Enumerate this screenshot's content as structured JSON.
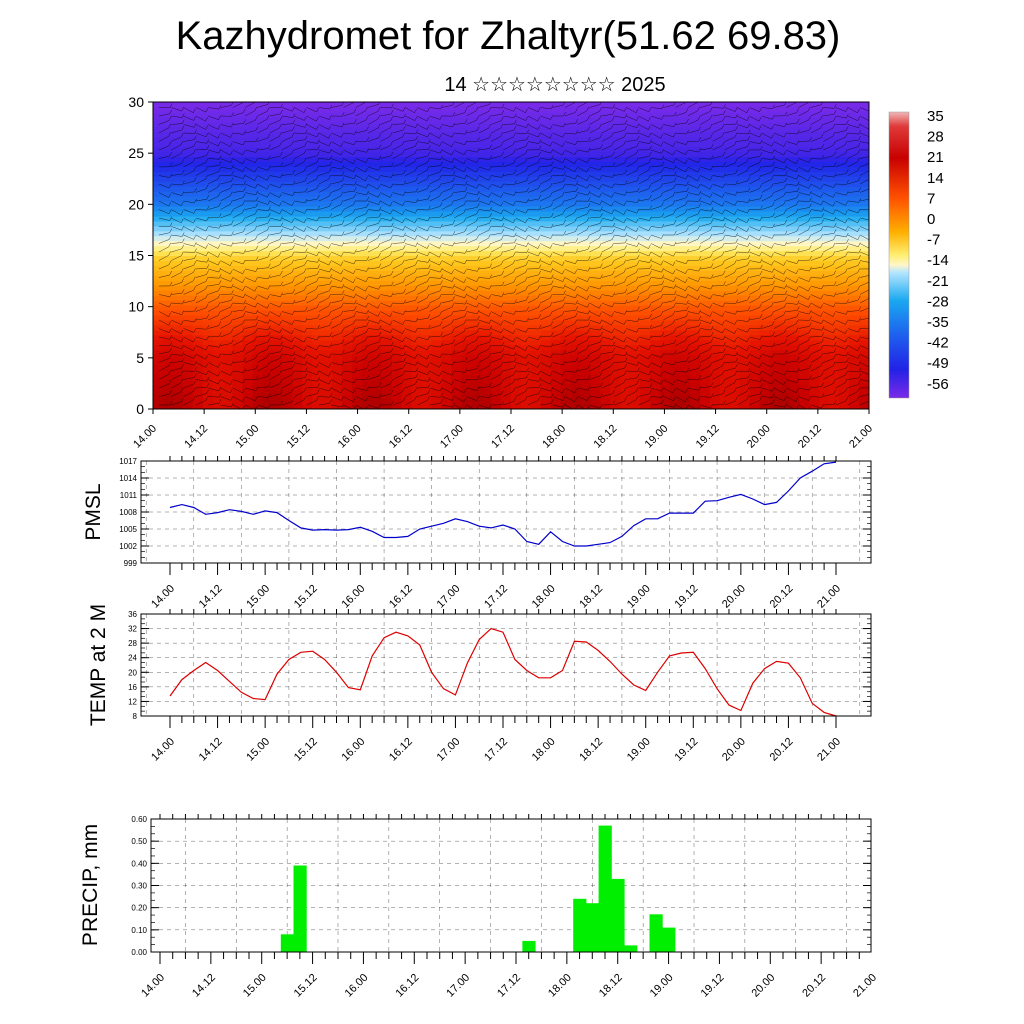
{
  "title": "Kazhydromet for Zhaltyr(51.62 69.83)",
  "subtitle": "14 ☆☆☆☆☆☆☆☆ 2025",
  "time_ticks": [
    "14.00",
    "14.12",
    "15.00",
    "15.12",
    "16.00",
    "16.12",
    "17.00",
    "17.12",
    "18.00",
    "18.12",
    "19.00",
    "19.12",
    "20.00",
    "20.12",
    "21.00"
  ],
  "colors": {
    "pmsl_line": "#0000cc",
    "temp_line": "#dd0000",
    "precip_bar": "#00ee00"
  },
  "chart_data": [
    {
      "type": "heatmap",
      "title": "",
      "xlabel": "",
      "ylabel": "",
      "ylim": [
        0,
        30
      ],
      "yticks": [
        0,
        5,
        10,
        15,
        20,
        25,
        30
      ],
      "overlay": "wind barbs",
      "colorbar": {
        "labels": [
          "35",
          "28",
          "21",
          "14",
          "7",
          "0",
          "-7",
          "-14",
          "-21",
          "-28",
          "-35",
          "-42",
          "-49",
          "-56"
        ],
        "levels": [
          35,
          28,
          21,
          14,
          7,
          0,
          -7,
          -14,
          -21,
          -28,
          -35,
          -42,
          -49,
          -56
        ]
      },
      "field_profile": {
        "height": [
          0,
          5,
          10,
          13,
          15,
          17,
          20,
          25,
          30
        ],
        "value": [
          32,
          28,
          15,
          5,
          -2,
          -18,
          -38,
          -55,
          -60
        ]
      }
    },
    {
      "type": "line",
      "ylabel": "PMSL",
      "ylim": [
        999,
        1017
      ],
      "yticks": [
        999,
        1002,
        1005,
        1008,
        1011,
        1014,
        1017
      ],
      "x_hours": [
        0,
        3,
        6,
        9,
        12,
        15,
        18,
        21,
        24,
        27,
        30,
        33,
        36,
        39,
        42,
        45,
        48,
        51,
        54,
        57,
        60,
        63,
        66,
        69,
        72,
        75,
        78,
        81,
        84,
        87,
        90,
        93,
        96,
        99,
        102,
        105,
        108,
        111,
        114,
        117,
        120,
        123,
        126,
        129,
        132,
        135,
        138,
        141,
        144,
        147,
        150,
        153,
        156,
        159,
        162,
        165,
        168
      ],
      "values": [
        1008.8,
        1009.3,
        1008.8,
        1007.6,
        1007.9,
        1008.4,
        1008.1,
        1007.6,
        1008.2,
        1007.9,
        1006.5,
        1005.2,
        1004.8,
        1004.9,
        1004.8,
        1004.9,
        1005.3,
        1004.6,
        1003.5,
        1003.5,
        1003.7,
        1005.0,
        1005.5,
        1006.0,
        1006.8,
        1006.3,
        1005.5,
        1005.2,
        1005.7,
        1005.0,
        1002.8,
        1002.3,
        1004.5,
        1002.8,
        1002.0,
        1002.0,
        1002.3,
        1002.6,
        1003.7,
        1005.6,
        1006.8,
        1006.8,
        1007.8,
        1007.8,
        1007.8,
        1009.9,
        1010.0,
        1010.6,
        1011.1,
        1010.3,
        1009.3,
        1009.7,
        1011.7,
        1014.0,
        1015.2,
        1016.5,
        1016.8
      ]
    },
    {
      "type": "line",
      "ylabel": "TEMP at 2 M",
      "ylim": [
        8,
        36
      ],
      "yticks": [
        8,
        12,
        16,
        20,
        24,
        28,
        32,
        36
      ],
      "x_hours": [
        0,
        3,
        6,
        9,
        12,
        15,
        18,
        21,
        24,
        27,
        30,
        33,
        36,
        39,
        42,
        45,
        48,
        51,
        54,
        57,
        60,
        63,
        66,
        69,
        72,
        75,
        78,
        81,
        84,
        87,
        90,
        93,
        96,
        99,
        102,
        105,
        108,
        111,
        114,
        117,
        120,
        123,
        126,
        129,
        132,
        135,
        138,
        141,
        144,
        147,
        150,
        153,
        156,
        159,
        162,
        165,
        168
      ],
      "values": [
        13.5,
        18.0,
        20.5,
        22.7,
        20.5,
        17.5,
        14.5,
        12.8,
        12.5,
        19.5,
        23.5,
        25.5,
        25.8,
        23.5,
        20.0,
        15.8,
        15.2,
        24.5,
        29.5,
        31.0,
        30.0,
        27.5,
        20.0,
        15.5,
        13.8,
        22.5,
        29.0,
        32.0,
        31.0,
        23.5,
        20.5,
        18.5,
        18.5,
        20.5,
        28.5,
        28.3,
        26.0,
        23.0,
        19.5,
        16.5,
        15.0,
        20.0,
        24.5,
        25.3,
        25.5,
        21.0,
        15.5,
        11.0,
        9.5,
        17.0,
        21.0,
        23.0,
        22.5,
        18.5,
        11.5,
        9.0,
        8.0
      ]
    },
    {
      "type": "bar",
      "ylabel": "PRECIP, mm",
      "ylim": [
        0,
        0.6
      ],
      "yticks": [
        "0.00",
        "0.10",
        "0.20",
        "0.30",
        "0.40",
        "0.50",
        "0.60"
      ],
      "x_hours": [
        30,
        33,
        87,
        99,
        102,
        105,
        108,
        111,
        117,
        120
      ],
      "values": [
        0.08,
        0.39,
        0.05,
        0.24,
        0.22,
        0.57,
        0.33,
        0.03,
        0.17,
        0.11
      ]
    }
  ]
}
